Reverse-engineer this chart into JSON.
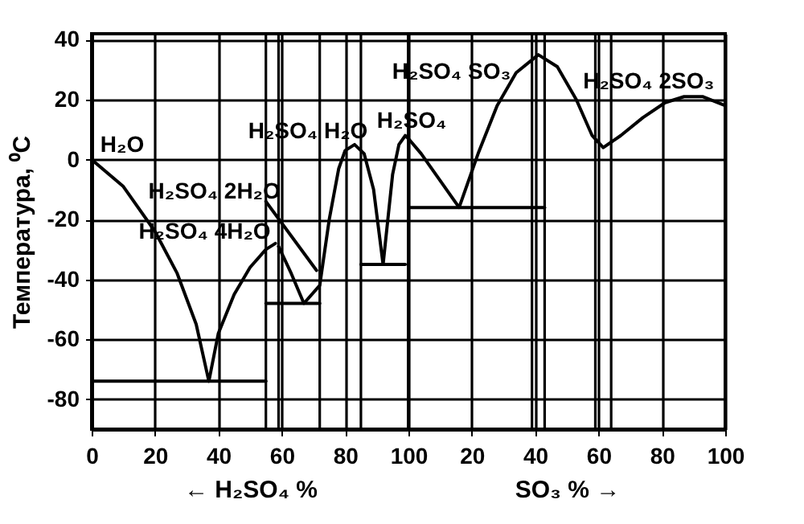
{
  "chart_data": [
    {
      "type": "line",
      "xlabel": "← H₂SO₄ %",
      "ylabel": "Температура, ⁰C",
      "xlim": [
        0,
        100
      ],
      "ylim": [
        -90,
        42
      ],
      "xticks": [
        0,
        20,
        40,
        60,
        80,
        100
      ],
      "yticks": [
        -80,
        -60,
        -40,
        -20,
        0,
        20,
        40
      ],
      "grid": true,
      "marker": "none",
      "line_style": "solid",
      "series": [
        {
          "color": "#000000",
          "x": [
            0,
            10,
            20,
            27,
            33,
            37,
            40,
            45,
            50,
            55,
            58
          ],
          "values": [
            0,
            -9,
            -24,
            -38,
            -55,
            -74,
            -58,
            -45,
            -36,
            -30,
            -28
          ]
        },
        {
          "color": "#000000",
          "x": [
            59,
            63,
            67,
            72,
            75,
            78,
            80,
            83,
            86,
            89,
            92,
            95,
            97,
            99,
            100
          ],
          "values": [
            -29,
            -38,
            -48,
            -42,
            -20,
            -3,
            3,
            5,
            2,
            -10,
            -35,
            -5,
            5,
            8,
            7
          ]
        },
        {
          "color": "#000000",
          "x": [
            55,
            71
          ],
          "values": [
            -14,
            -37
          ]
        },
        {
          "color": "#000000",
          "x": [
            0,
            55
          ],
          "values": [
            -74,
            -74
          ]
        },
        {
          "color": "#000000",
          "x": [
            55,
            72
          ],
          "values": [
            -48,
            -48
          ]
        },
        {
          "color": "#000000",
          "x": [
            85,
            99
          ],
          "values": [
            -35,
            -35
          ]
        }
      ],
      "ref_lines": [
        {
          "axis": "x",
          "value": 55
        },
        {
          "axis": "x",
          "value": 59
        },
        {
          "axis": "x",
          "value": 72
        },
        {
          "axis": "x",
          "value": 85
        }
      ],
      "annotations": [
        {
          "text": "H₂O",
          "x": 0,
          "y": 0
        },
        {
          "text": "H₂SO₄ 2H₂O",
          "x": 55,
          "y": -14
        },
        {
          "text": "H₂SO₄ 4H₂O",
          "x": 58,
          "y": -28
        },
        {
          "text": "H₂SO₄ H₂O",
          "x": 83,
          "y": 5
        },
        {
          "text": "H₂SO₄",
          "x": 99,
          "y": 8
        }
      ]
    },
    {
      "type": "line",
      "xlabel": "SO₃ % →",
      "xlim": [
        0,
        100
      ],
      "ylim": [
        -90,
        42
      ],
      "xticks": [
        20,
        40,
        60,
        80,
        100
      ],
      "yticks": [
        -80,
        -60,
        -40,
        -20,
        0,
        20,
        40
      ],
      "tick_labels": "x",
      "grid": true,
      "marker": "none",
      "line_style": "solid",
      "series": [
        {
          "color": "#000000",
          "x": [
            0,
            4,
            10,
            16,
            22,
            28,
            34,
            41,
            47,
            53,
            58,
            61.5,
            67,
            74,
            81,
            87,
            93,
            100
          ],
          "values": [
            7,
            2,
            -7,
            -16,
            2,
            18,
            29,
            35,
            31,
            20,
            8,
            4,
            8,
            14,
            19,
            21,
            21,
            18
          ]
        },
        {
          "color": "#000000",
          "x": [
            0,
            43
          ],
          "values": [
            -16,
            -16
          ]
        }
      ],
      "ref_lines": [
        {
          "axis": "x",
          "value": 39
        },
        {
          "axis": "x",
          "value": 43
        },
        {
          "axis": "x",
          "value": 59
        },
        {
          "axis": "x",
          "value": 64
        }
      ],
      "annotations": [
        {
          "text": "H₂SO₄ SO₃",
          "x": 41,
          "y": 35
        },
        {
          "text": "H₂SO₄ 2SO₃",
          "x": 87,
          "y": 21
        }
      ]
    }
  ]
}
